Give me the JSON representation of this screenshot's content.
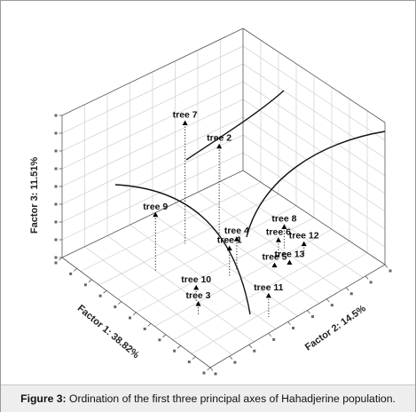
{
  "caption": {
    "prefix": "Figure 3:",
    "text": " Ordination of the first three principal axes of Hahadjerine population."
  },
  "chart_data": {
    "type": "scatter",
    "projection": "3d",
    "grid": true,
    "axes": {
      "x": {
        "label": "Factor 1: 38.82%"
      },
      "y": {
        "label": "Factor 2: 14.5%"
      },
      "z": {
        "label": "Factor 3: 11.51%"
      }
    },
    "points": [
      {
        "label": "tree 7",
        "f1": -2.0,
        "f2": -0.2,
        "f3": 3.4
      },
      {
        "label": "tree 2",
        "f1": -1.5,
        "f2": 0.9,
        "f3": 2.6
      },
      {
        "label": "tree 9",
        "f1": -1.4,
        "f2": -2.0,
        "f3": 1.6
      },
      {
        "label": "tree 1",
        "f1": 0.4,
        "f2": -0.2,
        "f3": 0.8
      },
      {
        "label": "tree 4",
        "f1": 0.3,
        "f2": 0.2,
        "f3": 0.9
      },
      {
        "label": "tree 6",
        "f1": 0.6,
        "f2": 1.8,
        "f3": 0.5
      },
      {
        "label": "tree 8",
        "f1": 0.3,
        "f2": 2.3,
        "f3": 0.6
      },
      {
        "label": "tree 5",
        "f1": 1.0,
        "f2": 1.3,
        "f3": 0.1
      },
      {
        "label": "tree 13",
        "f1": 1.2,
        "f2": 1.8,
        "f3": 0.1
      },
      {
        "label": "tree 12",
        "f1": 1.0,
        "f2": 2.6,
        "f3": 0.3
      },
      {
        "label": "tree 10",
        "f1": 0.8,
        "f2": -2.0,
        "f3": 0.4
      },
      {
        "label": "tree 3",
        "f1": 1.4,
        "f2": -2.4,
        "f3": 0.3
      },
      {
        "label": "tree 11",
        "f1": 3.0,
        "f2": -0.6,
        "f3": 0.6
      }
    ]
  }
}
